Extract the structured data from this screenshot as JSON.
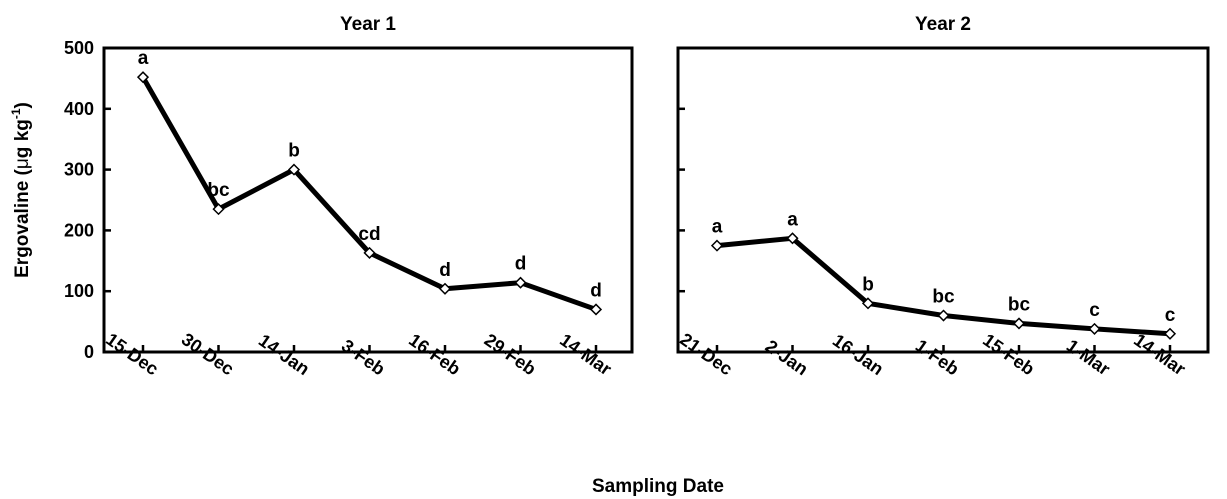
{
  "chart_data": [
    {
      "type": "line",
      "title": "Year 1",
      "ylabel": {
        "prefix": "Ergovaline (",
        "mu": "μ",
        "middle": "g kg",
        "sup": "-1",
        "suffix": ")"
      },
      "ylim": [
        0,
        500
      ],
      "yticks": [
        "0",
        "100",
        "200",
        "300",
        "400",
        "500"
      ],
      "categories": [
        "15-Dec",
        "30-Dec",
        "14-Jan",
        "3-Feb",
        "16-Feb",
        "29-Feb",
        "14-Mar"
      ],
      "values": [
        452,
        235,
        300,
        163,
        104,
        114,
        70
      ],
      "labels": [
        "a",
        "bc",
        "b",
        "cd",
        "d",
        "d",
        "d"
      ]
    },
    {
      "type": "line",
      "title": "Year 2",
      "ylim": [
        0,
        500
      ],
      "categories": [
        "21-Dec",
        "2-Jan",
        "16-Jan",
        "1-Feb",
        "15-Feb",
        "1-Mar",
        "14-Mar"
      ],
      "values": [
        175,
        187,
        80,
        60,
        47,
        38,
        30
      ],
      "labels": [
        "a",
        "a",
        "b",
        "bc",
        "bc",
        "c",
        "c"
      ]
    }
  ],
  "xlabel": "Sampling Date"
}
